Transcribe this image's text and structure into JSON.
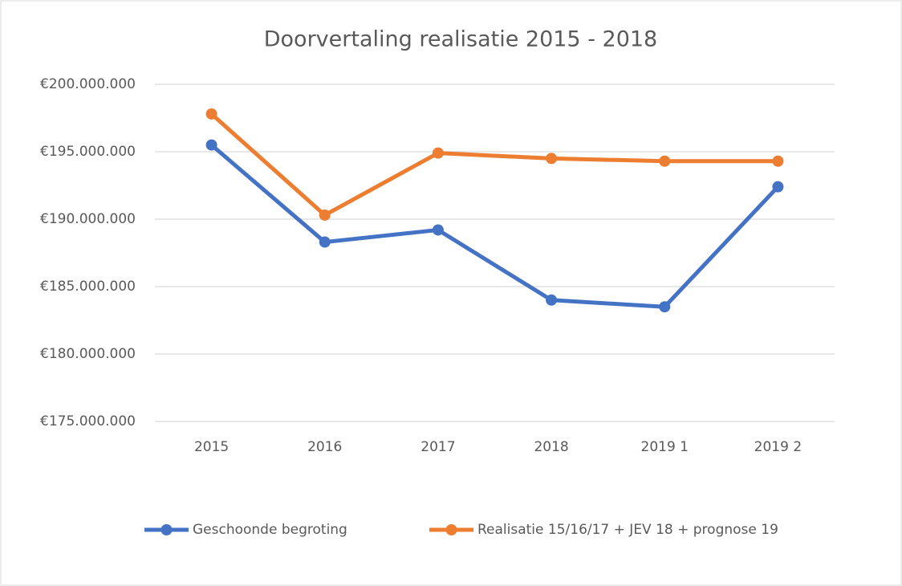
{
  "chart_data": {
    "type": "line",
    "title": "Doorvertaling realisatie 2015 - 2018",
    "categories": [
      "2015",
      "2016",
      "2017",
      "2018",
      "2019 1",
      "2019 2"
    ],
    "series": [
      {
        "name": "Geschoonde begroting",
        "color": "#4472c4",
        "values": [
          195500000,
          188300000,
          189200000,
          184000000,
          183500000,
          192400000
        ]
      },
      {
        "name": "Realisatie 15/16/17 + JEV 18 + prognose 19",
        "color": "#ed7d31",
        "values": [
          197800000,
          190300000,
          194900000,
          194500000,
          194300000,
          194300000
        ]
      }
    ],
    "ylim": [
      175000000,
      200000000
    ],
    "yticks": [
      {
        "value": 175000000,
        "label": "€175.000.000"
      },
      {
        "value": 180000000,
        "label": "€180.000.000"
      },
      {
        "value": 185000000,
        "label": "€185.000.000"
      },
      {
        "value": 190000000,
        "label": "€190.000.000"
      },
      {
        "value": 195000000,
        "label": "€195.000.000"
      },
      {
        "value": 200000000,
        "label": "€200.000.000"
      }
    ],
    "grid": true,
    "legend": "bottom"
  }
}
